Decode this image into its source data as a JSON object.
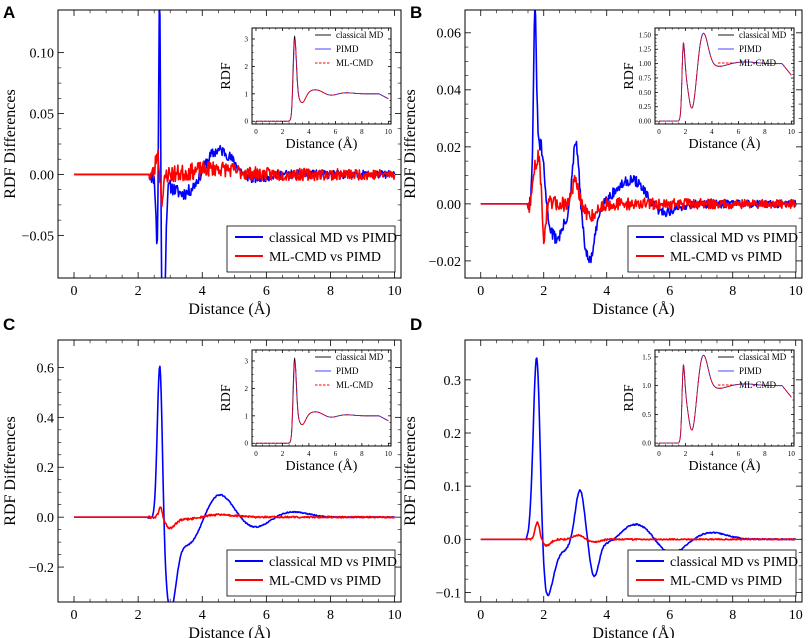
{
  "figure": {
    "background": "#ffffff",
    "axis_color": "#000000"
  },
  "colors": {
    "classical_md": "#0000ff",
    "ml_cmd": "#ff0000",
    "classical_md_inset": "#000000",
    "pimd_inset": "#3333ff",
    "ml_cmd_inset": "#ff0000"
  },
  "chart_data": [
    {
      "panel": "A",
      "type": "line",
      "xlabel": "Distance (Å)",
      "ylabel": "RDF Differences",
      "xlim": [
        -0.5,
        10.2
      ],
      "ylim": [
        -0.085,
        0.135
      ],
      "xticks": [
        0,
        2,
        4,
        6,
        8,
        10
      ],
      "xtick_labels": [
        "0",
        "2",
        "4",
        "6",
        "8",
        "10"
      ],
      "yticks": [
        -0.05,
        0.0,
        0.05,
        0.1
      ],
      "ytick_labels": [
        "−0.05",
        "0.00",
        "0.05",
        "0.10"
      ],
      "legend": {
        "position": "lower-right",
        "entries": [
          "classical MD vs PIMD",
          "ML-CMD vs PIMD"
        ]
      },
      "series": [
        {
          "name": "classical MD vs PIMD",
          "peaks": [
            [
              2.6,
              0.04,
              -0.06
            ],
            [
              2.67,
              0.03,
              0.19
            ],
            [
              2.78,
              0.06,
              -0.145
            ],
            [
              3.6,
              0.5,
              -0.022
            ],
            [
              4.4,
              0.55,
              0.025
            ],
            [
              5.4,
              0.4,
              -0.006
            ]
          ],
          "onset": 2.35,
          "noise": 0.006,
          "noise_decay": 5,
          "seed": 11
        },
        {
          "name": "ML-CMD vs PIMD",
          "peaks": [
            [
              2.6,
              0.05,
              0.018
            ],
            [
              2.75,
              0.05,
              -0.02
            ],
            [
              4.4,
              0.6,
              0.005
            ]
          ],
          "onset": 2.35,
          "noise": 0.008,
          "noise_decay": 5,
          "seed": 23
        }
      ],
      "inset": {
        "xlabel": "Distance (Å)",
        "ylabel": "RDF",
        "xlim": [
          -0.3,
          10.2
        ],
        "ylim": [
          -0.1,
          3.4
        ],
        "xticks": [
          0,
          2,
          4,
          6,
          8,
          10
        ],
        "xtick_labels": [
          "0",
          "2",
          "4",
          "6",
          "8",
          "10"
        ],
        "yticks": [
          0,
          1,
          2,
          3
        ],
        "ytick_labels": [
          "0",
          "1",
          "2",
          "3"
        ],
        "legend_entries": [
          "classical MD",
          "PIMD",
          "ML-CMD"
        ],
        "rdf": {
          "onset": 2.5,
          "peaks": [
            [
              2.9,
              0.13,
              2.3
            ],
            [
              3.5,
              0.25,
              -0.35
            ],
            [
              4.5,
              0.55,
              0.15
            ],
            [
              5.6,
              0.45,
              -0.07
            ],
            [
              6.8,
              0.55,
              0.04
            ]
          ],
          "tail_drop": -0.18
        }
      }
    },
    {
      "panel": "B",
      "type": "line",
      "xlabel": "Distance (Å)",
      "ylabel": "RDF Differences",
      "xlim": [
        -0.5,
        10.2
      ],
      "ylim": [
        -0.026,
        0.068
      ],
      "xticks": [
        0,
        2,
        4,
        6,
        8,
        10
      ],
      "xtick_labels": [
        "0",
        "2",
        "4",
        "6",
        "8",
        "10"
      ],
      "yticks": [
        -0.02,
        0.0,
        0.02,
        0.04,
        0.06
      ],
      "ytick_labels": [
        "−0.02",
        "0.00",
        "0.02",
        "0.04",
        "0.06"
      ],
      "legend": {
        "position": "lower-right",
        "entries": [
          "classical MD vs PIMD",
          "ML-CMD vs PIMD"
        ]
      },
      "series": [
        {
          "name": "classical MD vs PIMD",
          "peaks": [
            [
              1.72,
              0.05,
              0.06
            ],
            [
              1.9,
              0.12,
              0.022
            ],
            [
              2.4,
              0.25,
              -0.012
            ],
            [
              3.02,
              0.1,
              0.023
            ],
            [
              3.45,
              0.18,
              -0.02
            ],
            [
              4.6,
              0.4,
              0.006
            ],
            [
              5.0,
              0.3,
              0.004
            ],
            [
              5.8,
              0.4,
              -0.003
            ]
          ],
          "onset": 1.5,
          "noise": 0.0025,
          "noise_decay": 5,
          "seed": 31
        },
        {
          "name": "ML-CMD vs PIMD",
          "peaks": [
            [
              1.7,
              0.05,
              0.012
            ],
            [
              1.85,
              0.06,
              0.018
            ],
            [
              2.0,
              0.06,
              -0.012
            ],
            [
              3.0,
              0.1,
              0.008
            ],
            [
              3.5,
              0.2,
              -0.004
            ]
          ],
          "onset": 1.5,
          "noise": 0.003,
          "noise_decay": 5,
          "seed": 47
        }
      ],
      "inset": {
        "xlabel": "Distance (Å)",
        "ylabel": "RDF",
        "xlim": [
          -0.3,
          10.2
        ],
        "ylim": [
          -0.05,
          1.62
        ],
        "xticks": [
          0,
          2,
          4,
          6,
          8,
          10
        ],
        "xtick_labels": [
          "0",
          "2",
          "4",
          "6",
          "8",
          "10"
        ],
        "yticks": [
          0.0,
          0.25,
          0.5,
          0.75,
          1.0,
          1.25,
          1.5
        ],
        "ytick_labels": [
          "0.00",
          "0.25",
          "0.50",
          "0.75",
          "1.00",
          "1.25",
          "1.50"
        ],
        "legend_entries": [
          "classical MD",
          "PIMD",
          "ML-CMD"
        ],
        "rdf": {
          "onset": 1.5,
          "peaks": [
            [
              1.75,
              0.13,
              0.85
            ],
            [
              2.5,
              0.3,
              -0.8
            ],
            [
              3.35,
              0.35,
              0.55
            ],
            [
              4.5,
              0.6,
              -0.05
            ],
            [
              6.5,
              0.8,
              0.03
            ]
          ],
          "tail_drop": -0.2
        }
      }
    },
    {
      "panel": "C",
      "type": "line",
      "xlabel": "Distance (Å)",
      "ylabel": "RDF Differences",
      "xlim": [
        -0.5,
        10.2
      ],
      "ylim": [
        -0.34,
        0.71
      ],
      "xticks": [
        0,
        2,
        4,
        6,
        8,
        10
      ],
      "xtick_labels": [
        "0",
        "2",
        "4",
        "6",
        "8",
        "10"
      ],
      "yticks": [
        -0.2,
        0.0,
        0.2,
        0.4,
        0.6
      ],
      "ytick_labels": [
        "−0.2",
        "0.0",
        "0.2",
        "0.4",
        "0.6"
      ],
      "legend": {
        "position": "lower-right",
        "entries": [
          "classical MD vs PIMD",
          "ML-CMD vs PIMD"
        ]
      },
      "series": [
        {
          "name": "classical MD vs PIMD",
          "peaks": [
            [
              2.68,
              0.08,
              0.68
            ],
            [
              3.0,
              0.18,
              -0.33
            ],
            [
              3.6,
              0.4,
              -0.12
            ],
            [
              4.5,
              0.45,
              0.1
            ],
            [
              5.6,
              0.45,
              -0.045
            ],
            [
              6.8,
              0.5,
              0.022
            ]
          ],
          "onset": 2.3,
          "noise": 0.003,
          "noise_decay": 6,
          "seed": 53
        },
        {
          "name": "ML-CMD vs PIMD",
          "peaks": [
            [
              2.7,
              0.06,
              0.045
            ],
            [
              3.0,
              0.15,
              -0.04
            ],
            [
              3.5,
              0.4,
              -0.01
            ],
            [
              4.5,
              0.5,
              0.01
            ]
          ],
          "onset": 2.3,
          "noise": 0.005,
          "noise_decay": 6,
          "seed": 61
        }
      ],
      "inset": {
        "xlabel": "Distance (Å)",
        "ylabel": "RDF",
        "xlim": [
          -0.3,
          10.2
        ],
        "ylim": [
          -0.1,
          3.4
        ],
        "xticks": [
          0,
          2,
          4,
          6,
          8,
          10
        ],
        "xtick_labels": [
          "0",
          "2",
          "4",
          "6",
          "8",
          "10"
        ],
        "yticks": [
          0,
          1,
          2,
          3
        ],
        "ytick_labels": [
          "0",
          "1",
          "2",
          "3"
        ],
        "legend_entries": [
          "classical MD",
          "PIMD",
          "ML-CMD"
        ],
        "rdf": {
          "onset": 2.5,
          "peaks": [
            [
              2.9,
              0.13,
              2.3
            ],
            [
              3.5,
              0.25,
              -0.35
            ],
            [
              4.5,
              0.55,
              0.15
            ],
            [
              5.6,
              0.45,
              -0.07
            ],
            [
              6.8,
              0.55,
              0.04
            ]
          ],
          "tail_drop": -0.18
        }
      }
    },
    {
      "panel": "D",
      "type": "line",
      "xlabel": "Distance (Å)",
      "ylabel": "RDF Differences",
      "xlim": [
        -0.5,
        10.2
      ],
      "ylim": [
        -0.118,
        0.375
      ],
      "xticks": [
        0,
        2,
        4,
        6,
        8,
        10
      ],
      "xtick_labels": [
        "0",
        "2",
        "4",
        "6",
        "8",
        "10"
      ],
      "yticks": [
        -0.1,
        0.0,
        0.1,
        0.2,
        0.3
      ],
      "ytick_labels": [
        "−0.1",
        "0.0",
        "0.1",
        "0.2",
        "0.3"
      ],
      "legend": {
        "position": "lower-right",
        "entries": [
          "classical MD vs PIMD",
          "ML-CMD vs PIMD"
        ]
      },
      "series": [
        {
          "name": "classical MD vs PIMD",
          "peaks": [
            [
              1.78,
              0.11,
              0.37
            ],
            [
              2.1,
              0.2,
              -0.105
            ],
            [
              2.6,
              0.25,
              -0.02
            ],
            [
              3.15,
              0.15,
              0.095
            ],
            [
              3.6,
              0.15,
              -0.07
            ],
            [
              4.1,
              0.25,
              -0.01
            ],
            [
              5.0,
              0.5,
              0.03
            ],
            [
              6.0,
              0.45,
              -0.03
            ],
            [
              7.3,
              0.5,
              0.013
            ]
          ],
          "onset": 1.45,
          "noise": 0.0018,
          "noise_decay": 6,
          "seed": 71
        },
        {
          "name": "ML-CMD vs PIMD",
          "peaks": [
            [
              1.8,
              0.07,
              0.033
            ],
            [
              2.1,
              0.12,
              -0.012
            ],
            [
              3.1,
              0.15,
              0.008
            ],
            [
              3.6,
              0.2,
              -0.005
            ]
          ],
          "onset": 1.45,
          "noise": 0.0018,
          "noise_decay": 6,
          "seed": 83
        }
      ],
      "inset": {
        "xlabel": "Distance (Å)",
        "ylabel": "RDF",
        "xlim": [
          -0.3,
          10.2
        ],
        "ylim": [
          -0.05,
          1.62
        ],
        "xticks": [
          0,
          2,
          4,
          6,
          8,
          10
        ],
        "xtick_labels": [
          "0",
          "2",
          "4",
          "6",
          "8",
          "10"
        ],
        "yticks": [
          0.0,
          0.5,
          1.0,
          1.5
        ],
        "ytick_labels": [
          "0.0",
          "0.5",
          "1.0",
          "1.5"
        ],
        "legend_entries": [
          "classical MD",
          "PIMD",
          "ML-CMD"
        ],
        "rdf": {
          "onset": 1.5,
          "peaks": [
            [
              1.75,
              0.13,
              0.85
            ],
            [
              2.5,
              0.3,
              -0.8
            ],
            [
              3.35,
              0.35,
              0.55
            ],
            [
              4.5,
              0.6,
              -0.05
            ],
            [
              6.5,
              0.8,
              0.03
            ]
          ],
          "tail_drop": -0.2
        }
      }
    }
  ]
}
